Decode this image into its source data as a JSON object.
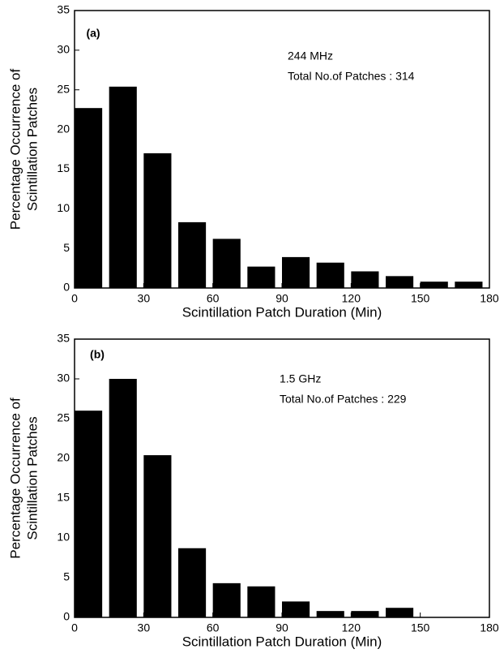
{
  "chart_data": [
    {
      "type": "histogram",
      "panel_label": "(a)",
      "annotations": [
        "244 MHz",
        "Total No.of Patches : 314"
      ],
      "xlabel": "Scintillation Patch Duration  (Min)",
      "ylabel": [
        "Percentage Occurrence of",
        "Scintillation Patches"
      ],
      "bins": [
        0,
        15,
        30,
        45,
        60,
        75,
        90,
        105,
        120,
        135,
        150,
        165,
        180
      ],
      "values": [
        22.7,
        25.4,
        17.0,
        8.3,
        6.2,
        2.7,
        3.9,
        3.2,
        2.1,
        1.5,
        0.8,
        0.8
      ],
      "color": "#000000",
      "xlim": [
        0,
        180
      ],
      "xticks": [
        0,
        30,
        60,
        90,
        120,
        150,
        180
      ],
      "ylim": [
        0,
        35
      ],
      "yticks": [
        0,
        5,
        10,
        15,
        20,
        25,
        30,
        35
      ]
    },
    {
      "type": "histogram",
      "panel_label": "(b)",
      "annotations": [
        "1.5 GHz",
        "Total No.of Patches : 229"
      ],
      "xlabel": "Scintillation Patch Duration (Min)",
      "ylabel": [
        "Percentage Occurrence of",
        "Scintillation Patches"
      ],
      "bins": [
        0,
        15,
        30,
        45,
        60,
        75,
        90,
        105,
        120,
        135,
        150,
        165,
        180
      ],
      "values": [
        26.0,
        30.0,
        20.4,
        8.7,
        4.3,
        3.9,
        2.0,
        0.8,
        0.8,
        1.2,
        0,
        0
      ],
      "color": "#000000",
      "xlim": [
        0,
        180
      ],
      "xticks": [
        0,
        30,
        60,
        90,
        120,
        150,
        180
      ],
      "ylim": [
        0,
        35
      ],
      "yticks": [
        0,
        5,
        10,
        15,
        20,
        25,
        30,
        35
      ]
    }
  ]
}
